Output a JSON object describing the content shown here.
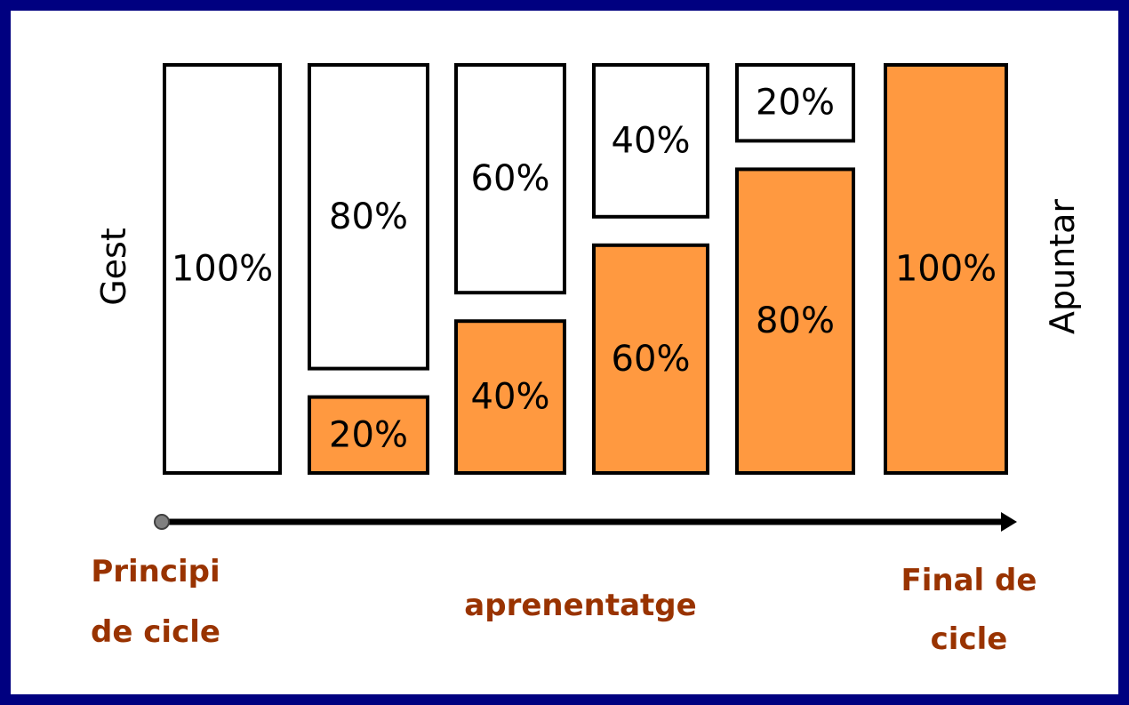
{
  "labels": {
    "left": "Gest",
    "right": "Apuntar",
    "start_line1": "Principi",
    "start_line2": "de cicle",
    "middle": "aprenentatge",
    "end_line1": "Final de",
    "end_line2": "cicle"
  },
  "colors": {
    "background": "#000080",
    "gesture": "#ffffff",
    "pointing": "#ff9940",
    "border": "#000000",
    "label_text": "#993300"
  },
  "chart_data": {
    "type": "bar",
    "stacked": true,
    "stages": [
      {
        "gest": 100,
        "apuntar": 0,
        "gest_label": "100%",
        "apuntar_label": ""
      },
      {
        "gest": 80,
        "apuntar": 20,
        "gest_label": "80%",
        "apuntar_label": "20%"
      },
      {
        "gest": 60,
        "apuntar": 40,
        "gest_label": "60%",
        "apuntar_label": "40%"
      },
      {
        "gest": 40,
        "apuntar": 60,
        "gest_label": "40%",
        "apuntar_label": "60%"
      },
      {
        "gest": 20,
        "apuntar": 80,
        "gest_label": "20%",
        "apuntar_label": "80%"
      },
      {
        "gest": 0,
        "apuntar": 100,
        "gest_label": "",
        "apuntar_label": "100%"
      }
    ]
  }
}
